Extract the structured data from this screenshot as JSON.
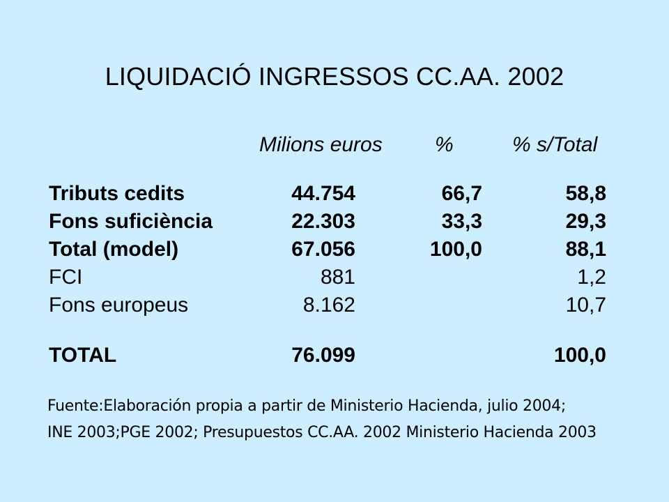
{
  "title": "LIQUIDACIÓ INGRESSOS CC.AA. 2002",
  "headers": {
    "millions": "Milions euros",
    "pct": "%",
    "pct_total": "% s/Total"
  },
  "rows": [
    {
      "label": "Tributs cedits",
      "millions": "44.754",
      "pct": "66,7",
      "pct_total": "58,8",
      "bold": true
    },
    {
      "label": "Fons suficiència",
      "millions": "22.303",
      "pct": "33,3",
      "pct_total": "29,3",
      "bold": true
    },
    {
      "label": "Total (model)",
      "millions": "67.056",
      "pct": "100,0",
      "pct_total": "88,1",
      "bold": true
    },
    {
      "label": "FCI",
      "millions": "881",
      "pct": "",
      "pct_total": "1,2",
      "bold": false
    },
    {
      "label": "Fons europeus",
      "millions": "8.162",
      "pct": "",
      "pct_total": "10,7",
      "bold": false
    },
    {
      "label": "TOTAL",
      "millions": "76.099",
      "pct": "",
      "pct_total": "100,0",
      "bold": true
    }
  ],
  "source": {
    "line1": "Fuente:Elaboración propia a partir de  Ministerio Hacienda, julio 2004;",
    "line2": "INE 2003;PGE 2002; Presupuestos CC.AA. 2002 Ministerio Hacienda 2003"
  }
}
